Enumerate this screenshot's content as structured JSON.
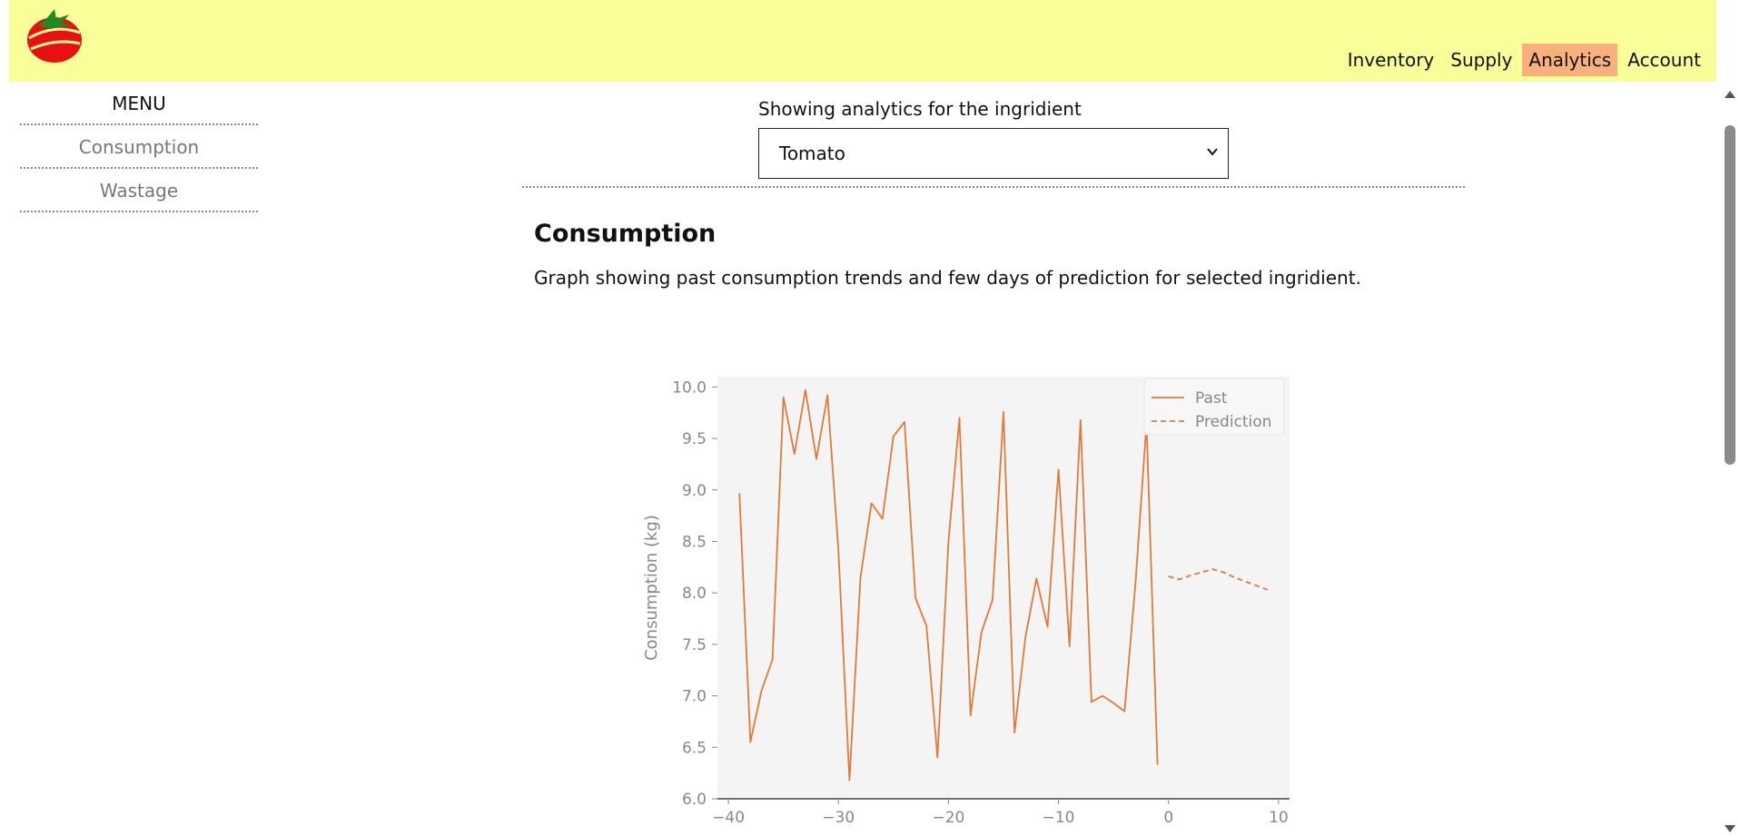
{
  "nav": {
    "items": [
      "Inventory",
      "Supply",
      "Analytics",
      "Account"
    ],
    "active": "Analytics"
  },
  "sidebar": {
    "title": "MENU",
    "items": [
      "Consumption",
      "Wastage"
    ]
  },
  "selector": {
    "label": "Showing analytics for the ingridient",
    "value": "Tomato"
  },
  "section": {
    "title": "Consumption",
    "description": "Graph showing past consumption trends and few days of prediction for selected ingridient."
  },
  "colors": {
    "topbar": "#fafe98",
    "active_nav": "#f8b17d",
    "series": "#e07a3a"
  },
  "chart_data": {
    "type": "line",
    "title": "",
    "xlabel": "",
    "ylabel": "Consumption (kg)",
    "xlim": [
      -41,
      11
    ],
    "ylim": [
      6.0,
      10.1
    ],
    "xticks": [
      -40,
      -30,
      -20,
      -10,
      0,
      10
    ],
    "yticks": [
      6.0,
      6.5,
      7.0,
      7.5,
      8.0,
      8.5,
      9.0,
      9.5,
      10.0
    ],
    "legend_position": "top-right",
    "grid": false,
    "series": [
      {
        "name": "Past",
        "style": "solid",
        "x": [
          -39,
          -38,
          -37,
          -36,
          -35,
          -34,
          -33,
          -32,
          -31,
          -30,
          -29,
          -28,
          -27,
          -26,
          -25,
          -24,
          -23,
          -22,
          -21,
          -20,
          -19,
          -18,
          -17,
          -16,
          -15,
          -14,
          -13,
          -12,
          -11,
          -10,
          -9,
          -8,
          -7,
          -6,
          -5,
          -4,
          -3,
          -2,
          -1
        ],
        "y": [
          8.97,
          6.55,
          7.05,
          7.35,
          9.9,
          9.35,
          9.97,
          9.3,
          9.92,
          8.4,
          6.18,
          8.15,
          8.87,
          8.72,
          9.52,
          9.66,
          7.95,
          7.68,
          6.4,
          8.5,
          9.7,
          6.81,
          7.62,
          7.93,
          9.76,
          6.64,
          7.57,
          8.14,
          7.67,
          9.2,
          7.48,
          9.68,
          6.94,
          7.0,
          6.93,
          6.85,
          8.1,
          9.65,
          6.33
        ]
      },
      {
        "name": "Prediction",
        "style": "dashed",
        "x": [
          0,
          1,
          2,
          3,
          4,
          5,
          6,
          7,
          8,
          9
        ],
        "y": [
          8.16,
          8.13,
          8.17,
          8.2,
          8.23,
          8.2,
          8.15,
          8.11,
          8.07,
          8.03
        ]
      }
    ]
  }
}
